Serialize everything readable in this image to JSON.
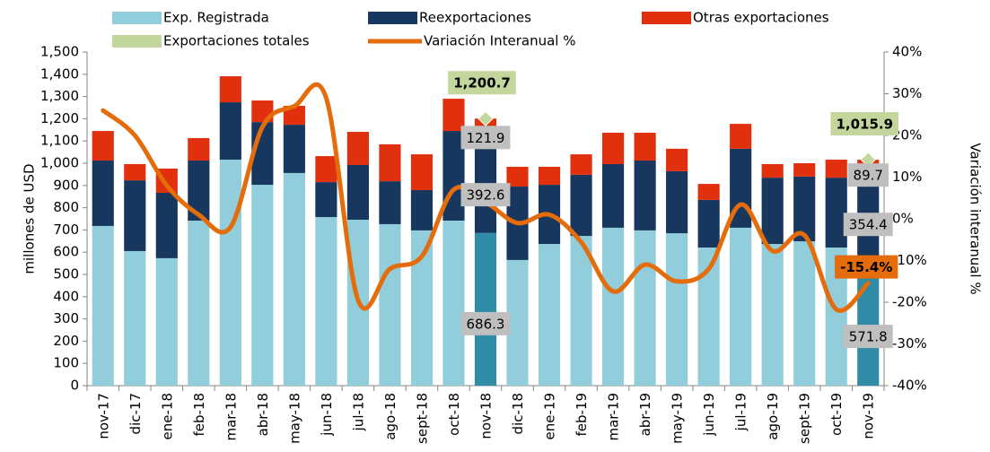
{
  "chart_data": {
    "type": "bar",
    "stacked": true,
    "categories": [
      "nov-17",
      "dic-17",
      "ene-18",
      "feb-18",
      "mar-18",
      "abr-18",
      "may-18",
      "jun-18",
      "jul-18",
      "ago-18",
      "sept-18",
      "oct-18",
      "nov-18",
      "dic-18",
      "ene-19",
      "feb-19",
      "mar-19",
      "abr-19",
      "may-19",
      "jun-19",
      "jul-19",
      "ago-19",
      "sept-19",
      "oct-19",
      "nov-19"
    ],
    "y_label": "millones de  USD",
    "y2_label": "Variación  interanual %",
    "ylim": [
      0,
      1500
    ],
    "yticks": [
      0,
      100,
      200,
      300,
      400,
      500,
      600,
      700,
      800,
      900,
      {
        "value": 1000,
        "label": "1,000"
      },
      {
        "value": 1100,
        "label": "1,100"
      },
      {
        "value": 1200,
        "label": "1,200"
      },
      {
        "value": 1300,
        "label": "1,300"
      },
      {
        "value": 1400,
        "label": "1,400"
      },
      {
        "value": 1500,
        "label": "1,500"
      }
    ],
    "y2lim": [
      -40,
      40
    ],
    "y2ticks": [
      {
        "value": -40,
        "label": "-40%"
      },
      {
        "value": -30,
        "label": "-30%"
      },
      {
        "value": -20,
        "label": "-20%"
      },
      {
        "value": -10,
        "label": "-10%"
      },
      {
        "value": 0,
        "label": "0%"
      },
      {
        "value": 10,
        "label": "10%"
      },
      {
        "value": 20,
        "label": "20%"
      },
      {
        "value": 30,
        "label": "30%"
      },
      {
        "value": 40,
        "label": "40%"
      }
    ],
    "legend": "top",
    "highlight": {
      "indices": [
        12,
        24
      ],
      "color": "#2f8ba6"
    },
    "series": [
      {
        "name": "Exp. Registrada",
        "type": "bar",
        "color": "#92cddc",
        "values": [
          718,
          605,
          573,
          742,
          1016,
          903,
          956,
          758,
          746,
          726,
          698,
          742,
          686.3,
          565,
          637,
          673,
          710,
          698,
          685,
          621,
          710,
          637,
          649,
          621,
          571.8
        ],
        "value_labels": [
          null,
          null,
          null,
          null,
          null,
          null,
          null,
          null,
          null,
          null,
          null,
          null,
          "686.3",
          null,
          null,
          null,
          null,
          null,
          null,
          null,
          null,
          null,
          null,
          null,
          "571.8"
        ]
      },
      {
        "name": "Reexportaciones",
        "type": "bar",
        "color": "#17375e",
        "values": [
          294,
          318,
          294,
          270,
          258,
          282,
          217,
          157,
          246,
          193,
          181,
          403,
          392.6,
          330,
          266,
          275,
          286,
          314,
          279,
          214,
          355,
          298,
          291,
          314,
          354.4
        ],
        "value_labels": [
          null,
          null,
          null,
          null,
          null,
          null,
          null,
          null,
          null,
          null,
          null,
          null,
          "392.6",
          null,
          null,
          null,
          null,
          null,
          null,
          null,
          null,
          null,
          null,
          null,
          "354.4"
        ]
      },
      {
        "name": "Otras exportaciones",
        "type": "bar",
        "color": "#e0300e",
        "values": [
          133,
          73,
          109,
          101,
          117,
          97,
          85,
          117,
          149,
          166,
          161,
          145,
          121.9,
          89,
          81,
          92,
          141,
          125,
          101,
          72,
          112,
          61,
          60,
          81,
          89.7
        ],
        "value_labels": [
          null,
          null,
          null,
          null,
          null,
          null,
          null,
          null,
          null,
          null,
          null,
          null,
          "121.9",
          null,
          null,
          null,
          null,
          null,
          null,
          null,
          null,
          null,
          null,
          null,
          "89.7"
        ]
      },
      {
        "name": "Exportaciones  totales",
        "type": "marker",
        "color": "#c3d69b",
        "values": [
          null,
          null,
          null,
          null,
          null,
          null,
          null,
          null,
          null,
          null,
          null,
          null,
          1200.7,
          null,
          null,
          null,
          null,
          null,
          null,
          null,
          null,
          null,
          null,
          null,
          1015.9
        ],
        "value_labels": [
          null,
          null,
          null,
          null,
          null,
          null,
          null,
          null,
          null,
          null,
          null,
          null,
          "1,200.7",
          null,
          null,
          null,
          null,
          null,
          null,
          null,
          null,
          null,
          null,
          null,
          "1,015.9"
        ]
      },
      {
        "name": "Variación Interanual %",
        "type": "line",
        "axis": "y2",
        "color": "#e46c0a",
        "values": [
          26,
          20,
          8,
          1,
          -2,
          22,
          27,
          29,
          -19.5,
          -12,
          -9,
          7,
          4,
          -1,
          1,
          -5.6,
          -17.4,
          -11,
          -15,
          -12,
          3.4,
          -7.7,
          -3.9,
          -21.7,
          -15.4
        ],
        "value_labels": [
          null,
          null,
          null,
          null,
          null,
          null,
          null,
          null,
          null,
          null,
          null,
          null,
          null,
          null,
          null,
          null,
          null,
          null,
          null,
          null,
          null,
          null,
          null,
          null,
          "-15.4%"
        ]
      }
    ]
  }
}
